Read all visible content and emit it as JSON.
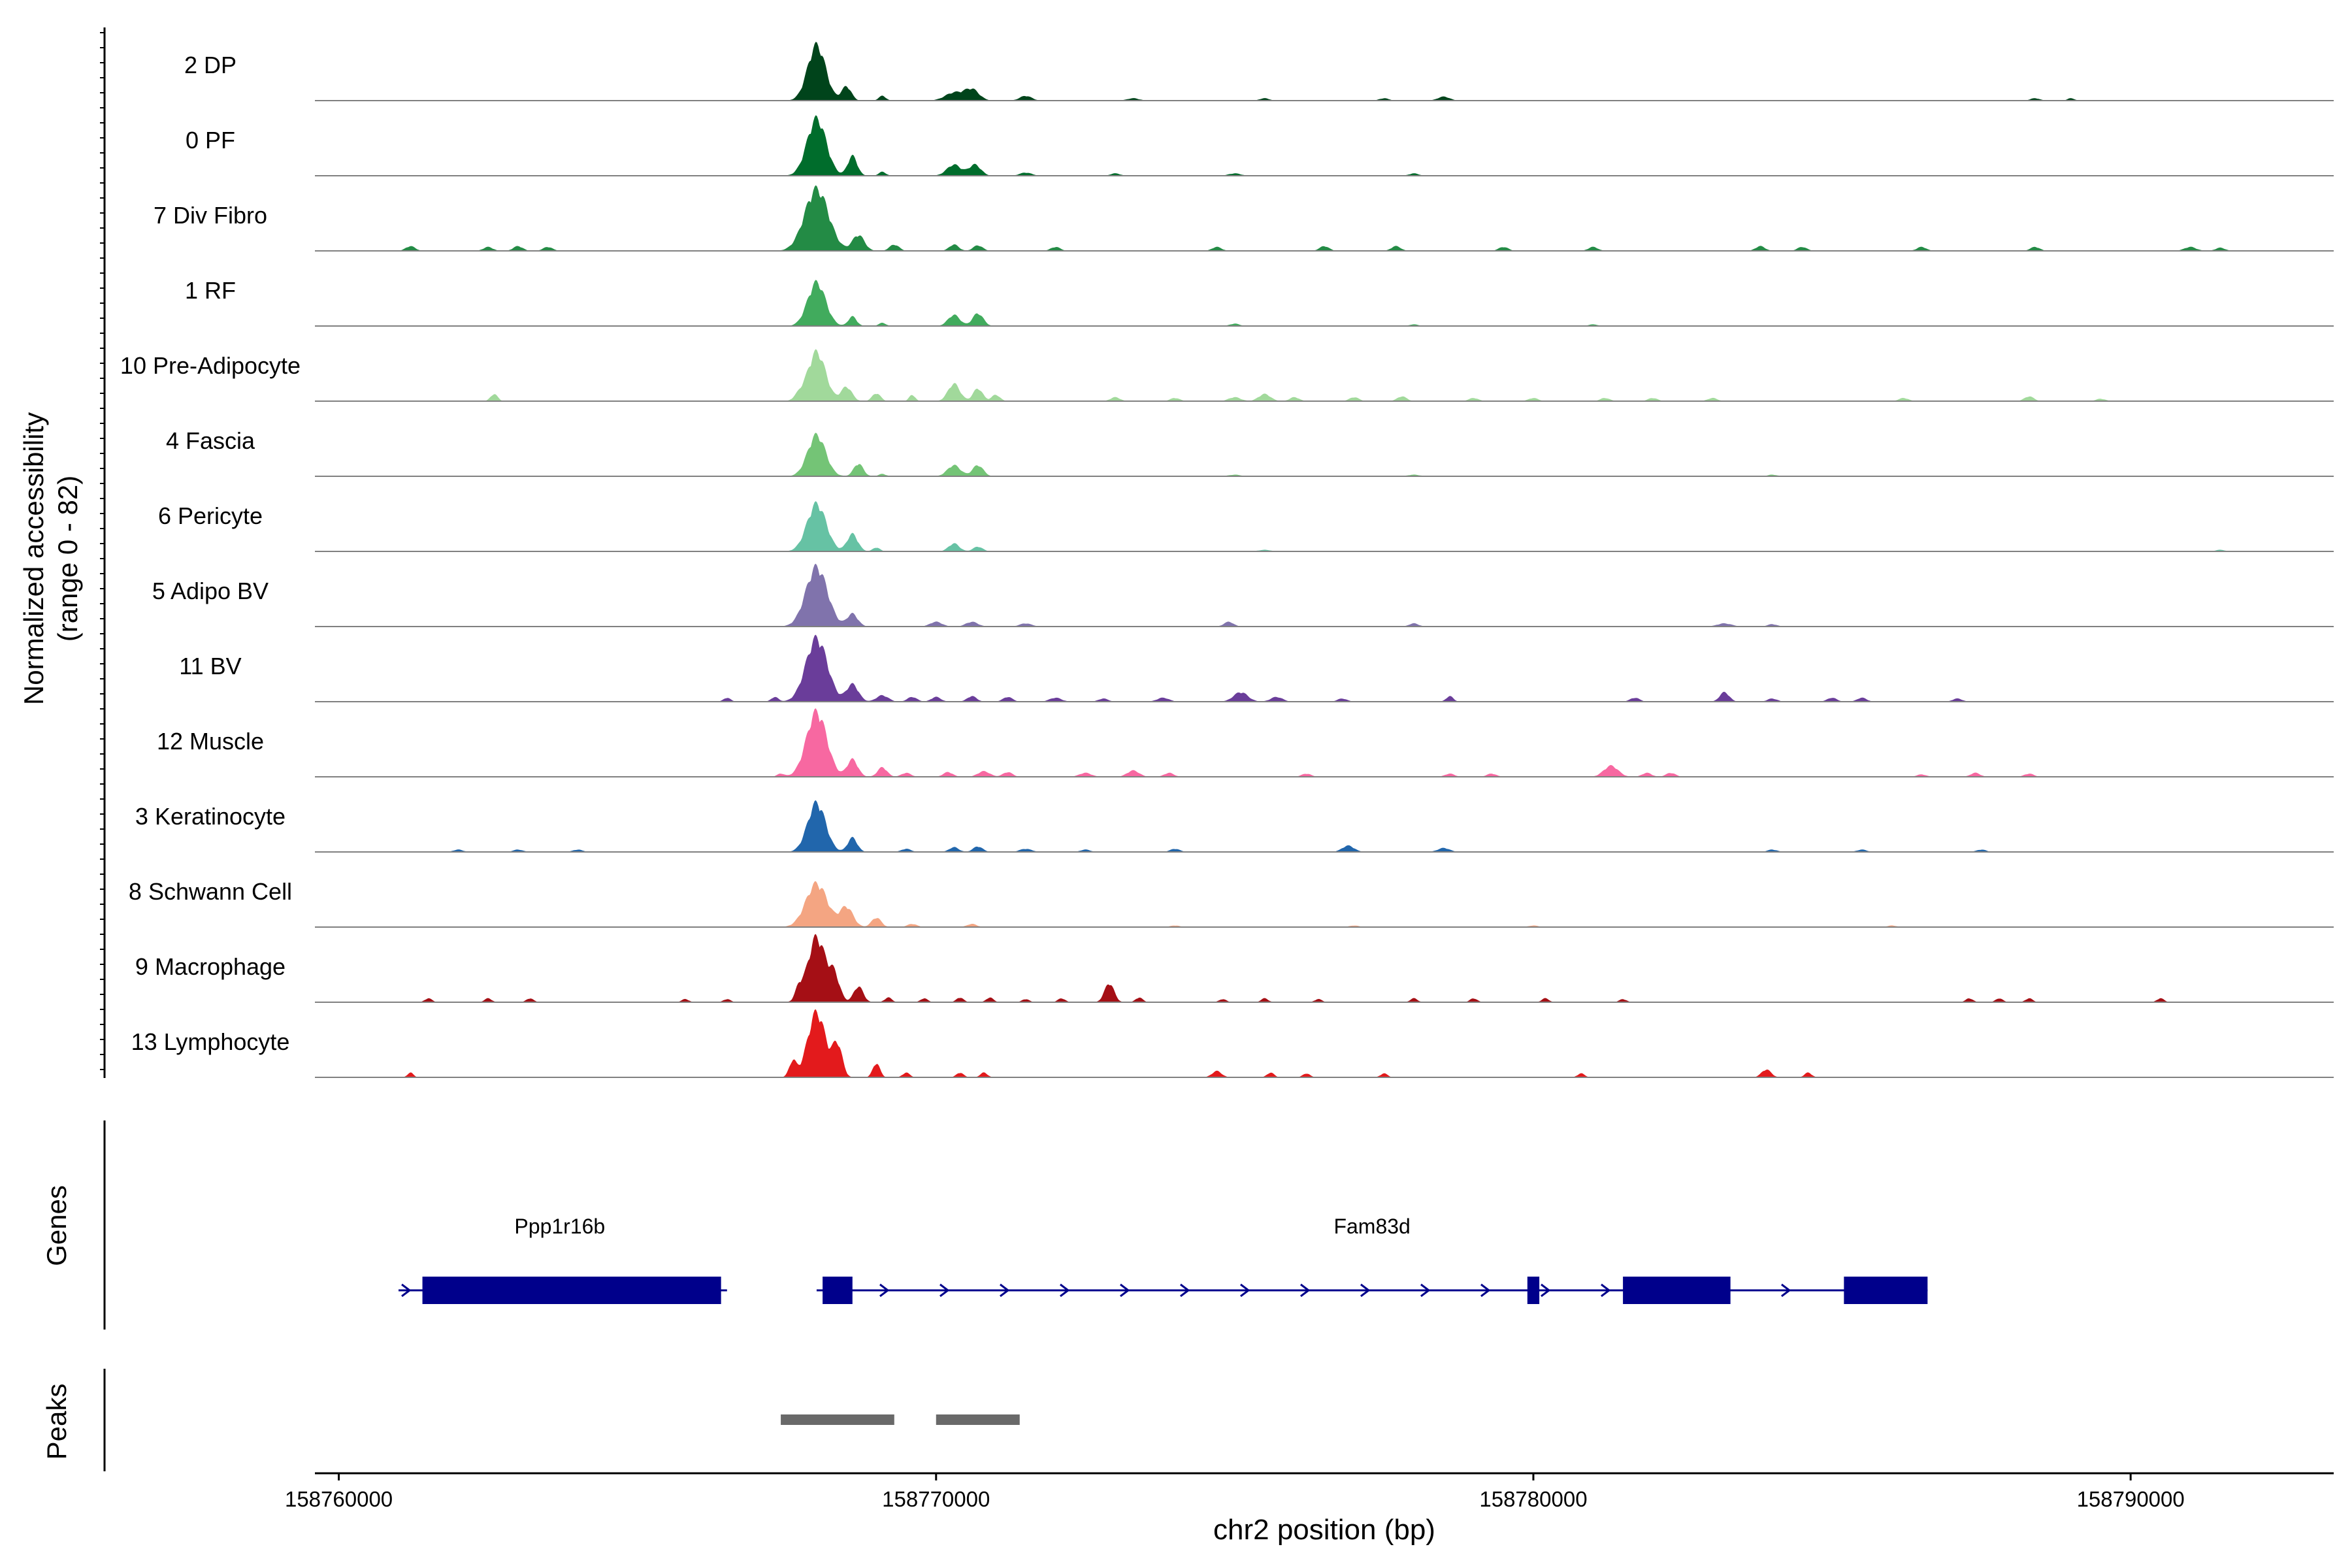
{
  "chart_data": {
    "type": "area",
    "title": "",
    "ylabel_line1": "Normalized accessibility",
    "ylabel_line2": "(range 0 - 82)",
    "y_range": [
      0,
      82
    ],
    "xlabel": "chr2 position (bp)",
    "x_range": [
      158759600,
      158793400
    ],
    "x_ticks": [
      158760000,
      158770000,
      158780000,
      158790000
    ],
    "x_tick_labels": [
      "158760000",
      "158770000",
      "158780000",
      "158790000"
    ],
    "tracks": [
      {
        "name": "2 DP",
        "color": "#00441b",
        "peaks": [
          [
            158768000,
            70,
            150
          ],
          [
            158768500,
            18,
            80
          ],
          [
            158769100,
            6,
            60
          ],
          [
            158770300,
            10,
            150
          ],
          [
            158770600,
            14,
            120
          ],
          [
            158771500,
            6,
            100
          ],
          [
            158773300,
            3,
            100
          ],
          [
            158775500,
            3,
            80
          ],
          [
            158777500,
            3,
            80
          ],
          [
            158778500,
            5,
            100
          ],
          [
            158788400,
            3,
            80
          ],
          [
            158789000,
            3,
            60
          ]
        ]
      },
      {
        "name": "0 PF",
        "color": "#006d2c",
        "peaks": [
          [
            158768000,
            72,
            160
          ],
          [
            158768600,
            25,
            80
          ],
          [
            158769100,
            5,
            60
          ],
          [
            158770300,
            14,
            120
          ],
          [
            158770650,
            14,
            100
          ],
          [
            158771500,
            4,
            100
          ],
          [
            158773000,
            3,
            80
          ],
          [
            158775000,
            3,
            100
          ],
          [
            158778000,
            3,
            80
          ]
        ]
      },
      {
        "name": "7 Div Fibro",
        "color": "#238b45",
        "peaks": [
          [
            158761200,
            6,
            80
          ],
          [
            158762500,
            5,
            80
          ],
          [
            158763000,
            6,
            80
          ],
          [
            158763500,
            5,
            80
          ],
          [
            158768000,
            78,
            200
          ],
          [
            158768700,
            20,
            100
          ],
          [
            158769300,
            8,
            80
          ],
          [
            158770300,
            8,
            80
          ],
          [
            158770700,
            7,
            80
          ],
          [
            158772000,
            5,
            80
          ],
          [
            158774700,
            5,
            80
          ],
          [
            158776500,
            6,
            80
          ],
          [
            158777700,
            6,
            80
          ],
          [
            158779500,
            5,
            80
          ],
          [
            158781000,
            5,
            80
          ],
          [
            158783800,
            6,
            80
          ],
          [
            158784500,
            5,
            80
          ],
          [
            158786500,
            5,
            80
          ],
          [
            158788400,
            5,
            80
          ],
          [
            158791000,
            5,
            100
          ],
          [
            158791500,
            4,
            80
          ]
        ]
      },
      {
        "name": "1 RF",
        "color": "#41ab5d",
        "peaks": [
          [
            158768000,
            55,
            150
          ],
          [
            158768600,
            12,
            70
          ],
          [
            158769100,
            4,
            60
          ],
          [
            158770300,
            14,
            100
          ],
          [
            158770700,
            16,
            90
          ],
          [
            158775000,
            3,
            80
          ],
          [
            158778000,
            2,
            80
          ],
          [
            158781000,
            2,
            80
          ]
        ]
      },
      {
        "name": "10 Pre-Adipocyte",
        "color": "#a1d99b",
        "peaks": [
          [
            158762600,
            9,
            60
          ],
          [
            158767700,
            6,
            80
          ],
          [
            158768000,
            62,
            150
          ],
          [
            158768500,
            18,
            90
          ],
          [
            158769000,
            10,
            70
          ],
          [
            158769600,
            8,
            50
          ],
          [
            158770300,
            22,
            100
          ],
          [
            158770700,
            16,
            80
          ],
          [
            158771000,
            8,
            70
          ],
          [
            158773000,
            5,
            80
          ],
          [
            158774000,
            4,
            80
          ],
          [
            158775000,
            5,
            100
          ],
          [
            158775500,
            9,
            100
          ],
          [
            158776000,
            5,
            80
          ],
          [
            158777000,
            5,
            80
          ],
          [
            158777800,
            6,
            80
          ],
          [
            158779000,
            4,
            80
          ],
          [
            158780000,
            4,
            80
          ],
          [
            158781200,
            4,
            80
          ],
          [
            158782000,
            4,
            80
          ],
          [
            158783000,
            4,
            80
          ],
          [
            158786200,
            4,
            80
          ],
          [
            158788300,
            6,
            80
          ],
          [
            158789500,
            3,
            80
          ]
        ]
      },
      {
        "name": "4 Fascia",
        "color": "#74c476",
        "peaks": [
          [
            158768000,
            52,
            150
          ],
          [
            158768700,
            16,
            80
          ],
          [
            158769100,
            3,
            60
          ],
          [
            158770300,
            14,
            110
          ],
          [
            158770700,
            14,
            90
          ],
          [
            158775000,
            2,
            100
          ],
          [
            158778000,
            2,
            100
          ],
          [
            158784000,
            2,
            80
          ]
        ]
      },
      {
        "name": "6 Pericyte",
        "color": "#66c2a4",
        "peaks": [
          [
            158768000,
            60,
            160
          ],
          [
            158768600,
            22,
            90
          ],
          [
            158769000,
            5,
            60
          ],
          [
            158770300,
            10,
            90
          ],
          [
            158770700,
            6,
            80
          ],
          [
            158775500,
            2,
            100
          ],
          [
            158791500,
            2,
            80
          ]
        ]
      },
      {
        "name": "5 Adipo BV",
        "color": "#8073ac",
        "peaks": [
          [
            158768000,
            75,
            180
          ],
          [
            158768600,
            16,
            90
          ],
          [
            158770000,
            6,
            100
          ],
          [
            158770600,
            6,
            100
          ],
          [
            158771500,
            4,
            100
          ],
          [
            158774900,
            6,
            80
          ],
          [
            158778000,
            4,
            80
          ],
          [
            158783200,
            4,
            120
          ],
          [
            158784000,
            3,
            80
          ]
        ]
      },
      {
        "name": "11 BV",
        "color": "#6a3d9a",
        "peaks": [
          [
            158766500,
            5,
            60
          ],
          [
            158767300,
            6,
            60
          ],
          [
            158768000,
            80,
            180
          ],
          [
            158768600,
            22,
            100
          ],
          [
            158769100,
            8,
            100
          ],
          [
            158769600,
            6,
            80
          ],
          [
            158770000,
            6,
            80
          ],
          [
            158770600,
            7,
            80
          ],
          [
            158771200,
            6,
            80
          ],
          [
            158772000,
            5,
            100
          ],
          [
            158772800,
            4,
            80
          ],
          [
            158773800,
            5,
            100
          ],
          [
            158775100,
            12,
            120
          ],
          [
            158775700,
            6,
            100
          ],
          [
            158776800,
            4,
            80
          ],
          [
            158778600,
            7,
            60
          ],
          [
            158781700,
            5,
            80
          ],
          [
            158783200,
            12,
            80
          ],
          [
            158784000,
            4,
            80
          ],
          [
            158785000,
            5,
            80
          ],
          [
            158785500,
            5,
            80
          ],
          [
            158787100,
            4,
            80
          ]
        ]
      },
      {
        "name": "12 Muscle",
        "color": "#f768a1",
        "peaks": [
          [
            158767400,
            4,
            60
          ],
          [
            158768000,
            82,
            170
          ],
          [
            158768600,
            22,
            90
          ],
          [
            158769100,
            12,
            80
          ],
          [
            158769500,
            5,
            80
          ],
          [
            158770200,
            6,
            80
          ],
          [
            158770800,
            7,
            100
          ],
          [
            158771200,
            6,
            80
          ],
          [
            158772500,
            5,
            100
          ],
          [
            158773300,
            8,
            100
          ],
          [
            158773900,
            5,
            80
          ],
          [
            158776200,
            4,
            80
          ],
          [
            158778600,
            4,
            80
          ],
          [
            158779300,
            4,
            80
          ],
          [
            158781300,
            14,
            120
          ],
          [
            158781900,
            5,
            80
          ],
          [
            158782300,
            5,
            80
          ],
          [
            158786500,
            3,
            80
          ],
          [
            158787400,
            5,
            80
          ],
          [
            158788300,
            4,
            80
          ]
        ]
      },
      {
        "name": "3 Keratinocyte",
        "color": "#2166ac",
        "peaks": [
          [
            158762000,
            3,
            80
          ],
          [
            158763000,
            3,
            80
          ],
          [
            158764000,
            3,
            80
          ],
          [
            158768000,
            62,
            150
          ],
          [
            158768600,
            18,
            80
          ],
          [
            158769500,
            4,
            80
          ],
          [
            158770300,
            6,
            80
          ],
          [
            158770700,
            7,
            80
          ],
          [
            158771500,
            4,
            100
          ],
          [
            158772500,
            3,
            80
          ],
          [
            158774000,
            4,
            80
          ],
          [
            158776900,
            8,
            100
          ],
          [
            158778500,
            5,
            100
          ],
          [
            158784000,
            3,
            80
          ],
          [
            158785500,
            3,
            80
          ],
          [
            158787500,
            3,
            80
          ]
        ]
      },
      {
        "name": "8 Schwann Cell",
        "color": "#f4a582",
        "peaks": [
          [
            158768000,
            55,
            180
          ],
          [
            158768500,
            25,
            110
          ],
          [
            158769000,
            12,
            80
          ],
          [
            158769600,
            4,
            80
          ],
          [
            158770600,
            4,
            80
          ],
          [
            158774000,
            2,
            80
          ],
          [
            158777000,
            2,
            80
          ],
          [
            158780000,
            2,
            80
          ],
          [
            158786000,
            2,
            80
          ]
        ]
      },
      {
        "name": "9 Macrophage",
        "color": "#a50f15",
        "peaks": [
          [
            158761500,
            5,
            60
          ],
          [
            158762500,
            5,
            60
          ],
          [
            158763200,
            5,
            60
          ],
          [
            158765800,
            4,
            60
          ],
          [
            158766500,
            4,
            60
          ],
          [
            158767700,
            14,
            60
          ],
          [
            158768000,
            82,
            150
          ],
          [
            158768300,
            30,
            90
          ],
          [
            158768700,
            20,
            80
          ],
          [
            158769200,
            6,
            60
          ],
          [
            158769800,
            5,
            60
          ],
          [
            158770400,
            6,
            60
          ],
          [
            158770900,
            6,
            60
          ],
          [
            158771500,
            4,
            60
          ],
          [
            158772100,
            5,
            60
          ],
          [
            158772900,
            24,
            80
          ],
          [
            158773400,
            6,
            60
          ],
          [
            158774800,
            4,
            60
          ],
          [
            158775500,
            5,
            60
          ],
          [
            158776400,
            4,
            60
          ],
          [
            158778000,
            5,
            60
          ],
          [
            158779000,
            5,
            60
          ],
          [
            158780200,
            5,
            60
          ],
          [
            158781500,
            4,
            60
          ],
          [
            158787300,
            5,
            60
          ],
          [
            158787800,
            5,
            60
          ],
          [
            158788300,
            5,
            60
          ],
          [
            158790500,
            5,
            60
          ]
        ]
      },
      {
        "name": "13 Lymphocyte",
        "color": "#e31a1c",
        "peaks": [
          [
            158761200,
            6,
            50
          ],
          [
            158767600,
            20,
            60
          ],
          [
            158768000,
            82,
            150
          ],
          [
            158768350,
            40,
            80
          ],
          [
            158769000,
            18,
            60
          ],
          [
            158769500,
            6,
            60
          ],
          [
            158770400,
            6,
            60
          ],
          [
            158770800,
            6,
            60
          ],
          [
            158774700,
            8,
            80
          ],
          [
            158775600,
            6,
            60
          ],
          [
            158776200,
            5,
            60
          ],
          [
            158777500,
            5,
            60
          ],
          [
            158780800,
            5,
            60
          ],
          [
            158783900,
            10,
            80
          ],
          [
            158784600,
            6,
            60
          ]
        ]
      }
    ],
    "genes_label": "Genes",
    "genes": [
      {
        "name": "Ppp1r16b",
        "start": 158761000,
        "end": 158766500,
        "strand": "+",
        "exons": [
          [
            158761400,
            158766400
          ]
        ]
      },
      {
        "name": "Fam83d",
        "start": 158768000,
        "end": 158786600,
        "strand": "+",
        "exons": [
          [
            158768100,
            158768600
          ],
          [
            158779900,
            158780100
          ],
          [
            158781500,
            158783300
          ],
          [
            158785200,
            158786600
          ]
        ]
      }
    ],
    "peaks_label": "Peaks",
    "peak_regions": [
      [
        158767400,
        158769300
      ],
      [
        158770000,
        158771400
      ]
    ],
    "colors": {
      "gene": "#00008b",
      "peak": "#696969",
      "baseline": "#808080"
    }
  }
}
